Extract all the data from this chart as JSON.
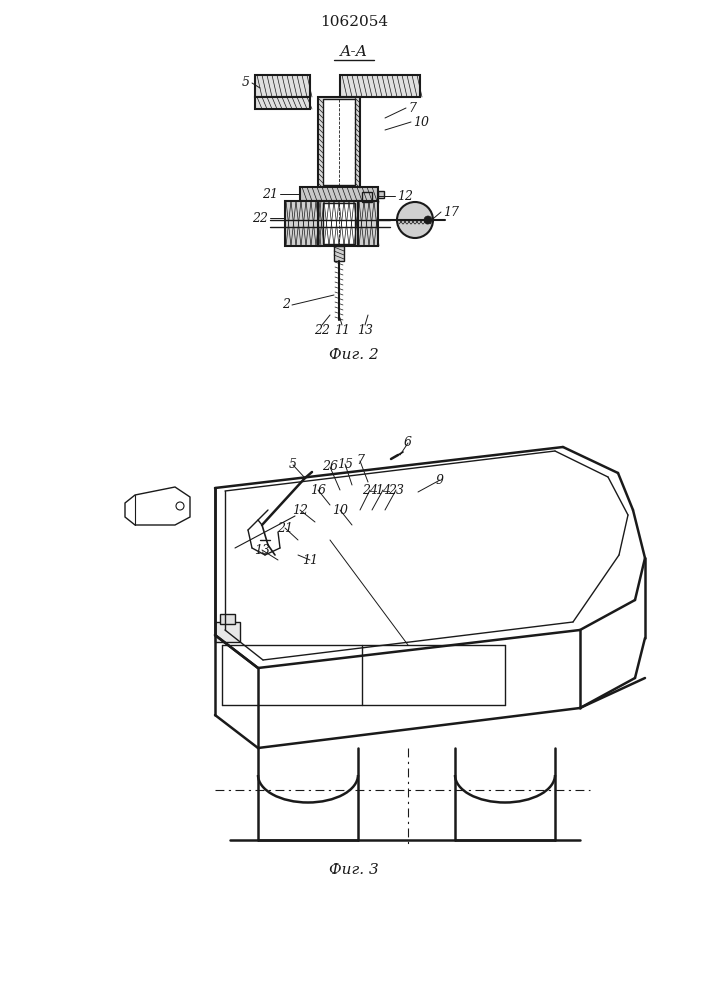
{
  "patent_number": "1062054",
  "fig2_caption": "Фиг. 2",
  "fig3_caption": "Фиг. 3",
  "aa_label": "А-А",
  "background_color": "#ffffff",
  "line_color": "#1a1a1a"
}
